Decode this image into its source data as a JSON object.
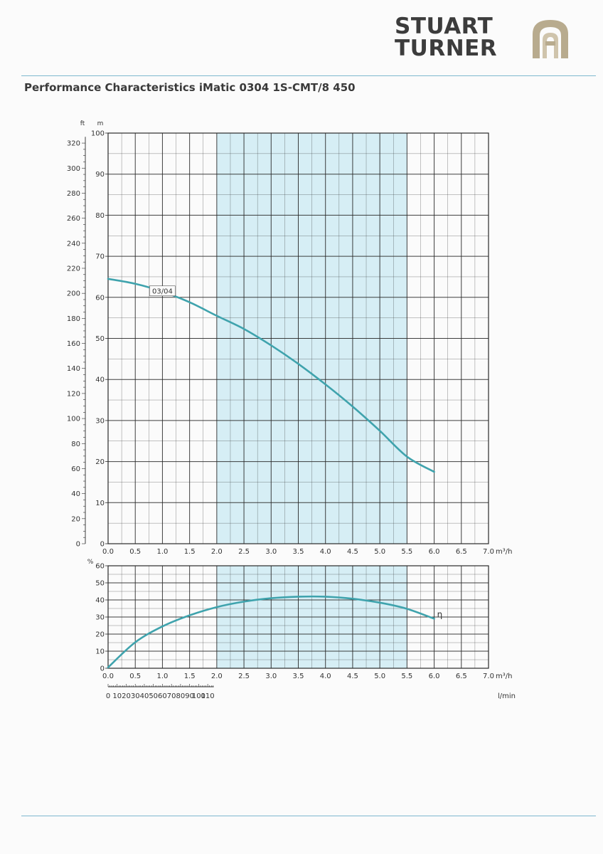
{
  "header": {
    "logo_line1": "STUART",
    "logo_line2": "TURNER",
    "title": "Performance Characteristics iMatic 0304 1S-CMT/8 450"
  },
  "colors": {
    "curve": "#3fa3ad",
    "band": "#d6eef5",
    "grid": "#2a2a2a",
    "rule": "#7fb8cf",
    "logo_text": "#3c3c3c",
    "logo_emblem": "#b8ab8e"
  },
  "icons": {
    "logo_emblem": "stuart-turner-emblem-icon"
  },
  "chart_data": [
    {
      "type": "line",
      "title": "",
      "xlabel": "m³/h",
      "ylabel": "m",
      "ylabel_secondary": "ft",
      "xlim": [
        0,
        7
      ],
      "ylim": [
        0,
        100
      ],
      "ylim_secondary": [
        0,
        328
      ],
      "x_ticks": [
        "0.0",
        "0.5",
        "1.0",
        "1.5",
        "2.0",
        "2.5",
        "3.0",
        "3.5",
        "4.0",
        "4.5",
        "5.0",
        "5.5",
        "6.0",
        "6.5",
        "7.0"
      ],
      "y_ticks": [
        "0",
        "10",
        "20",
        "30",
        "40",
        "50",
        "60",
        "70",
        "80",
        "90",
        "100"
      ],
      "y_ticks_secondary": [
        "0",
        "20",
        "40",
        "60",
        "80",
        "100",
        "120",
        "140",
        "160",
        "180",
        "200",
        "220",
        "240",
        "260",
        "280",
        "300",
        "320"
      ],
      "highlight_range": [
        2.0,
        5.5
      ],
      "grid": true,
      "series": [
        {
          "name": "03/04",
          "x": [
            0.0,
            0.5,
            1.0,
            1.5,
            2.0,
            2.5,
            3.0,
            3.5,
            4.0,
            4.5,
            5.0,
            5.5,
            6.0
          ],
          "y": [
            64.5,
            63.3,
            61.4,
            58.8,
            55.5,
            52.3,
            48.3,
            43.8,
            38.8,
            33.4,
            27.5,
            21.2,
            17.5
          ]
        }
      ]
    },
    {
      "type": "line",
      "title": "",
      "xlabel": "m³/h",
      "ylabel": "%",
      "xlabel_secondary": "l/min",
      "xlim": [
        0,
        7
      ],
      "ylim": [
        0,
        60
      ],
      "x_ticks": [
        "0.0",
        "0.5",
        "1.0",
        "1.5",
        "2.0",
        "2.5",
        "3.0",
        "3.5",
        "4.0",
        "4.5",
        "5.0",
        "5.5",
        "6.0",
        "6.5",
        "7.0"
      ],
      "y_ticks": [
        "0",
        "10",
        "20",
        "30",
        "40",
        "50",
        "60"
      ],
      "x_ticks_secondary": [
        "0",
        "10",
        "20",
        "30",
        "40",
        "50",
        "60",
        "70",
        "80",
        "90",
        "100",
        "110"
      ],
      "highlight_range": [
        2.0,
        5.5
      ],
      "grid": true,
      "series": [
        {
          "name": "η",
          "x": [
            0.0,
            0.5,
            1.0,
            1.5,
            2.0,
            2.5,
            3.0,
            3.5,
            4.0,
            4.5,
            5.0,
            5.5,
            6.0
          ],
          "y": [
            0.5,
            15.2,
            24.5,
            31.0,
            35.8,
            39.0,
            41.0,
            41.9,
            41.9,
            40.7,
            38.4,
            34.8,
            29.0
          ]
        }
      ]
    }
  ]
}
